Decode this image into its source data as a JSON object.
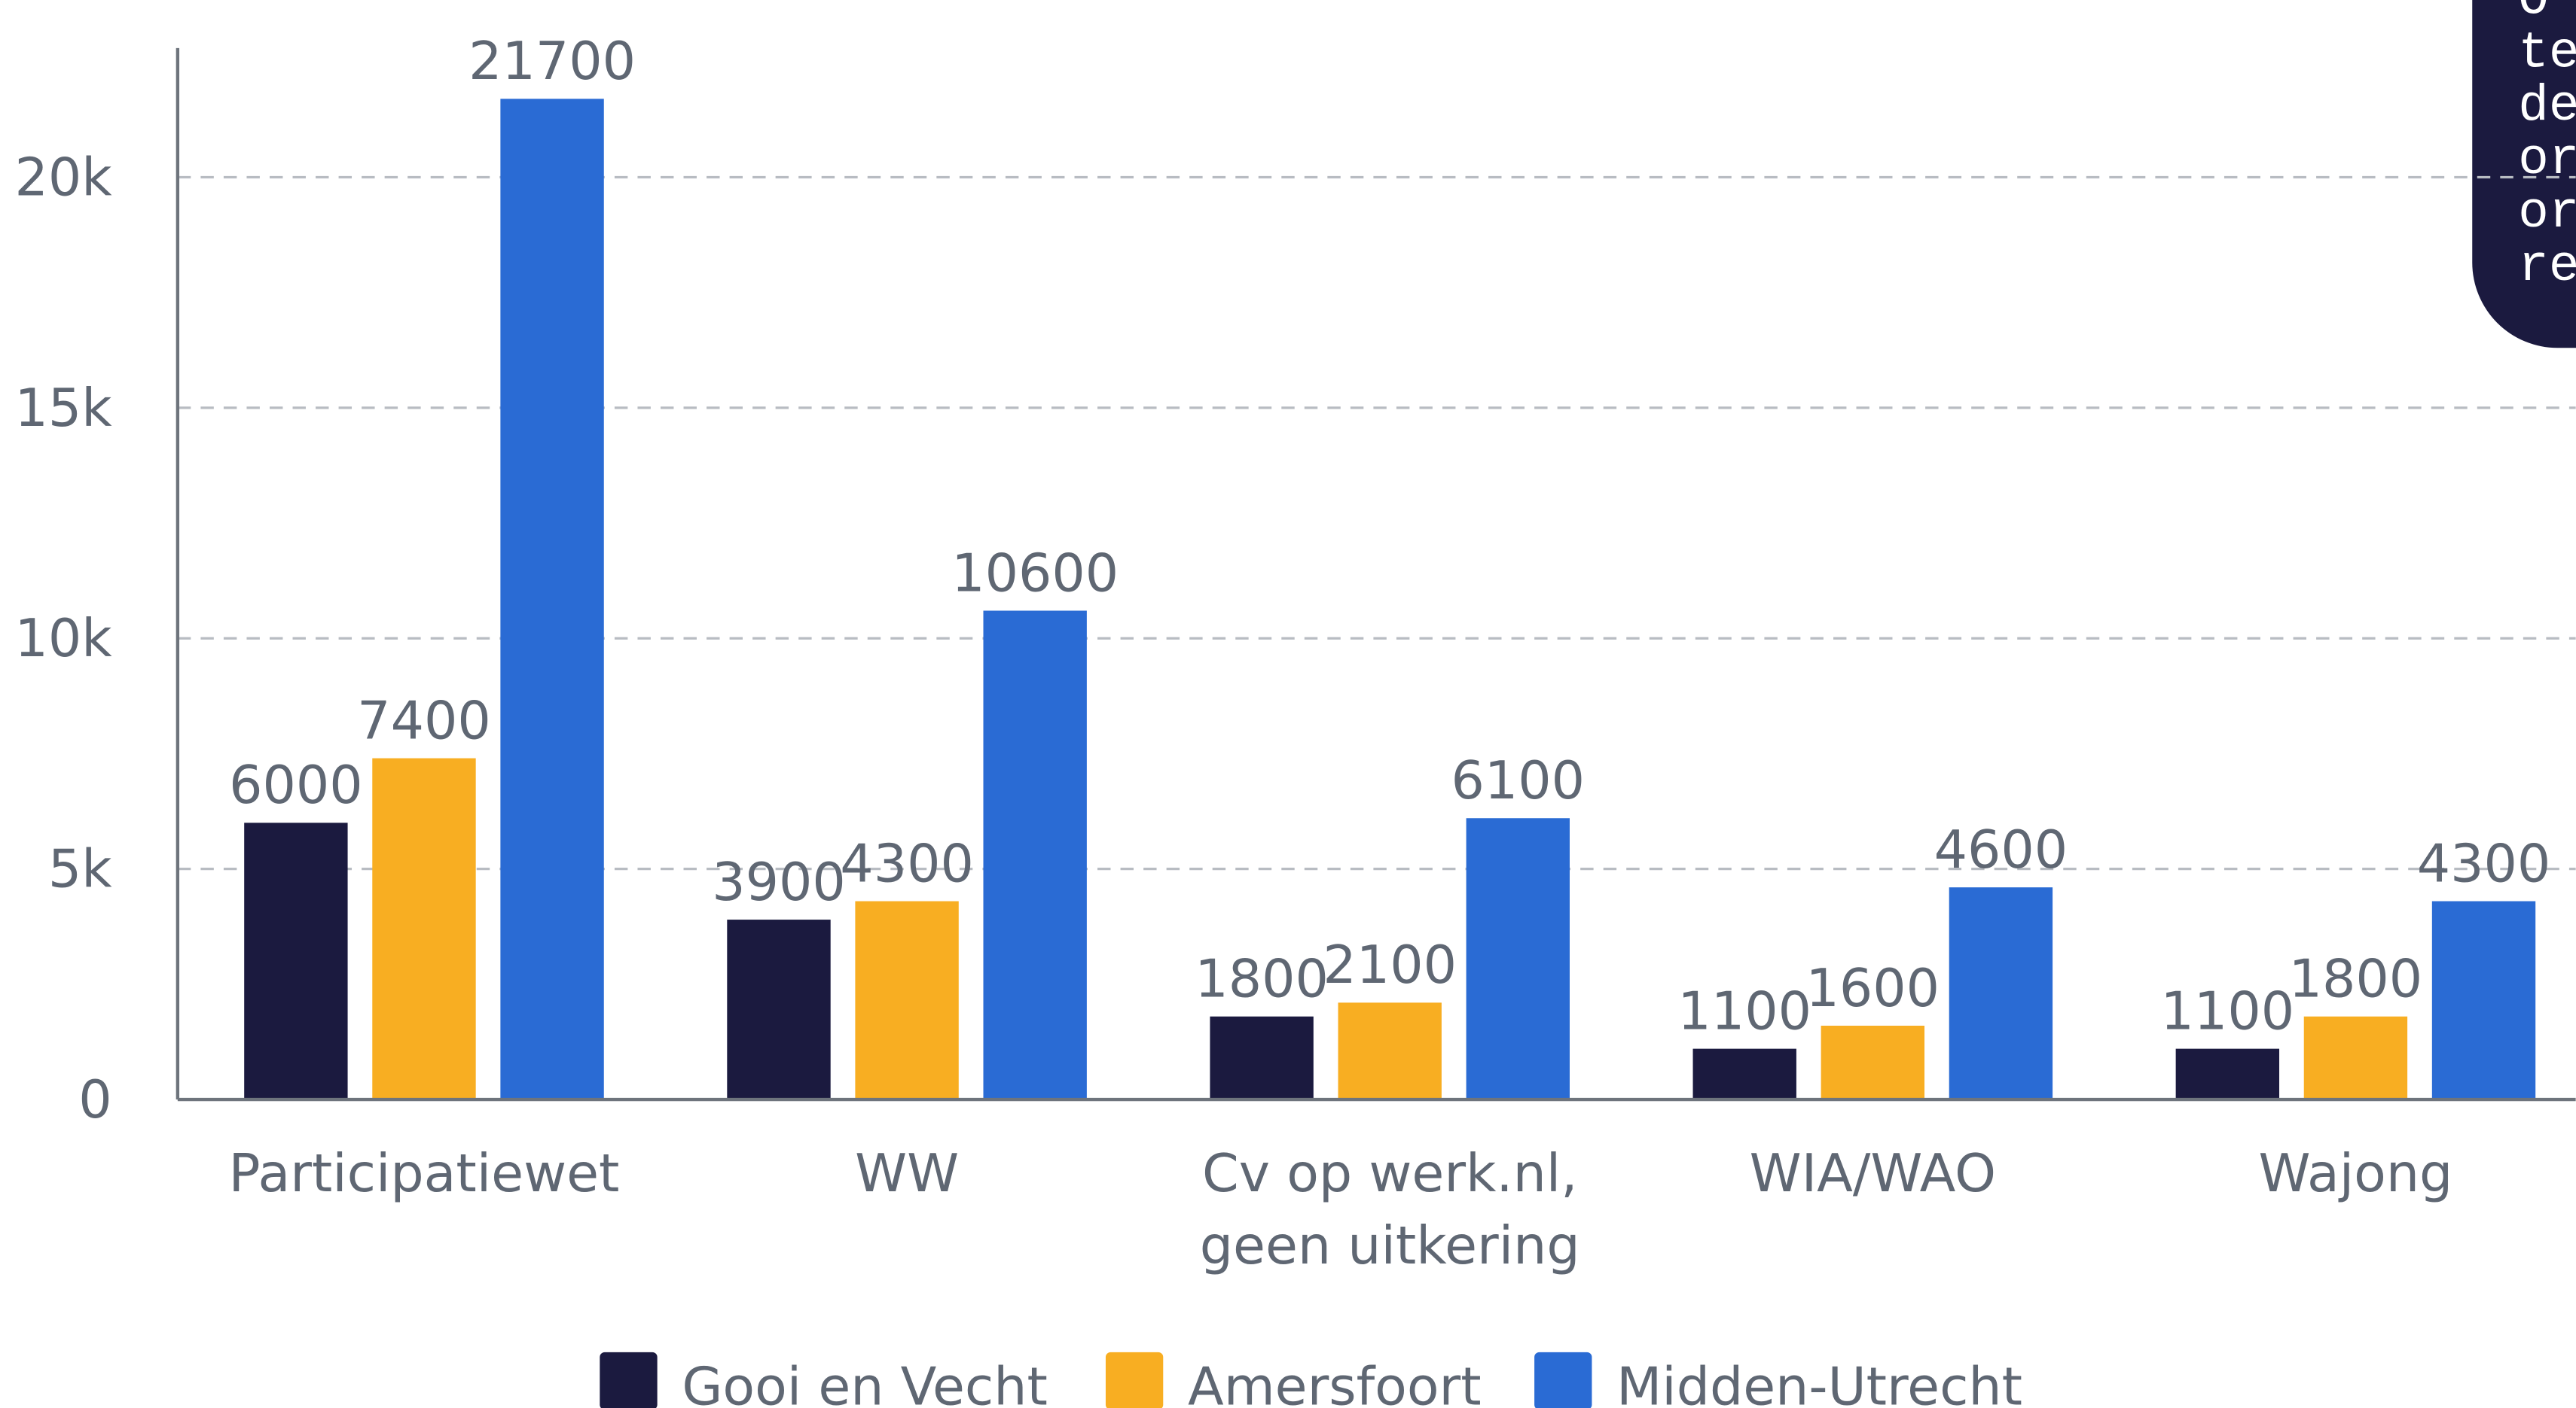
{
  "chart_data": {
    "type": "bar",
    "categories": [
      "Participatiewet",
      "WW",
      "Cv op werk.nl,\ngeen uitkering",
      "WIA/WAO",
      "Wajong"
    ],
    "series": [
      {
        "name": "Gooi en Vecht",
        "color": "#1b1a3f",
        "values": [
          6000,
          3900,
          1800,
          1100,
          1100
        ]
      },
      {
        "name": "Amersfoort",
        "color": "#f8ae22",
        "values": [
          7400,
          4300,
          2100,
          1600,
          1800
        ]
      },
      {
        "name": "Midden-Utrecht",
        "color": "#2a6bd4",
        "values": [
          21700,
          10600,
          6100,
          4600,
          4300
        ]
      }
    ],
    "ylim": [
      0,
      22800
    ],
    "yticks": [
      0,
      {
        "value": 5000,
        "label": "5k"
      },
      {
        "value": 10000,
        "label": "10k"
      },
      {
        "value": 15000,
        "label": "15k"
      },
      {
        "value": 20000,
        "label": "20k"
      }
    ],
    "grid": true,
    "legend": "bottom",
    "side_note": [
      "O",
      "te",
      "de",
      "or",
      "or",
      "re"
    ]
  }
}
